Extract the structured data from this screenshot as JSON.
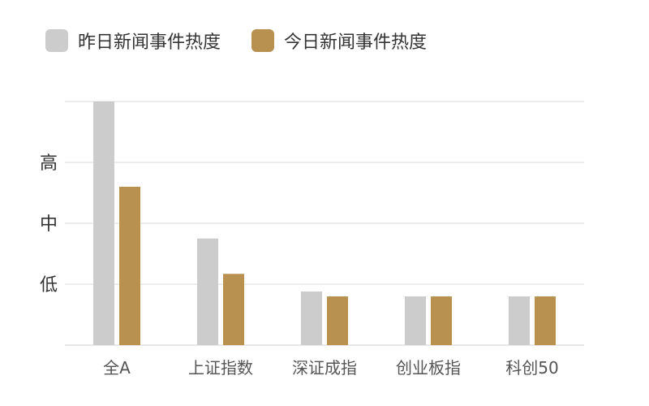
{
  "colors": {
    "series": [
      "#cccccc",
      "#b89150"
    ],
    "grid": "#d8d8d8",
    "axis": "#cfcfcf"
  },
  "chart_data": {
    "type": "bar",
    "categories": [
      "全A",
      "上证指数",
      "深证成指",
      "创业板指",
      "科创50"
    ],
    "series": [
      {
        "name": "昨日新闻事件热度",
        "values": [
          4.0,
          1.75,
          0.88,
          0.8,
          0.8
        ]
      },
      {
        "name": "今日新闻事件热度",
        "values": [
          2.6,
          1.17,
          0.8,
          0.8,
          0.8
        ]
      }
    ],
    "yticks": [
      {
        "value": 3,
        "label": "高"
      },
      {
        "value": 2,
        "label": "中"
      },
      {
        "value": 1,
        "label": "低"
      }
    ],
    "ylim": [
      0,
      4
    ],
    "grid": true,
    "legend_position": "top-left"
  }
}
